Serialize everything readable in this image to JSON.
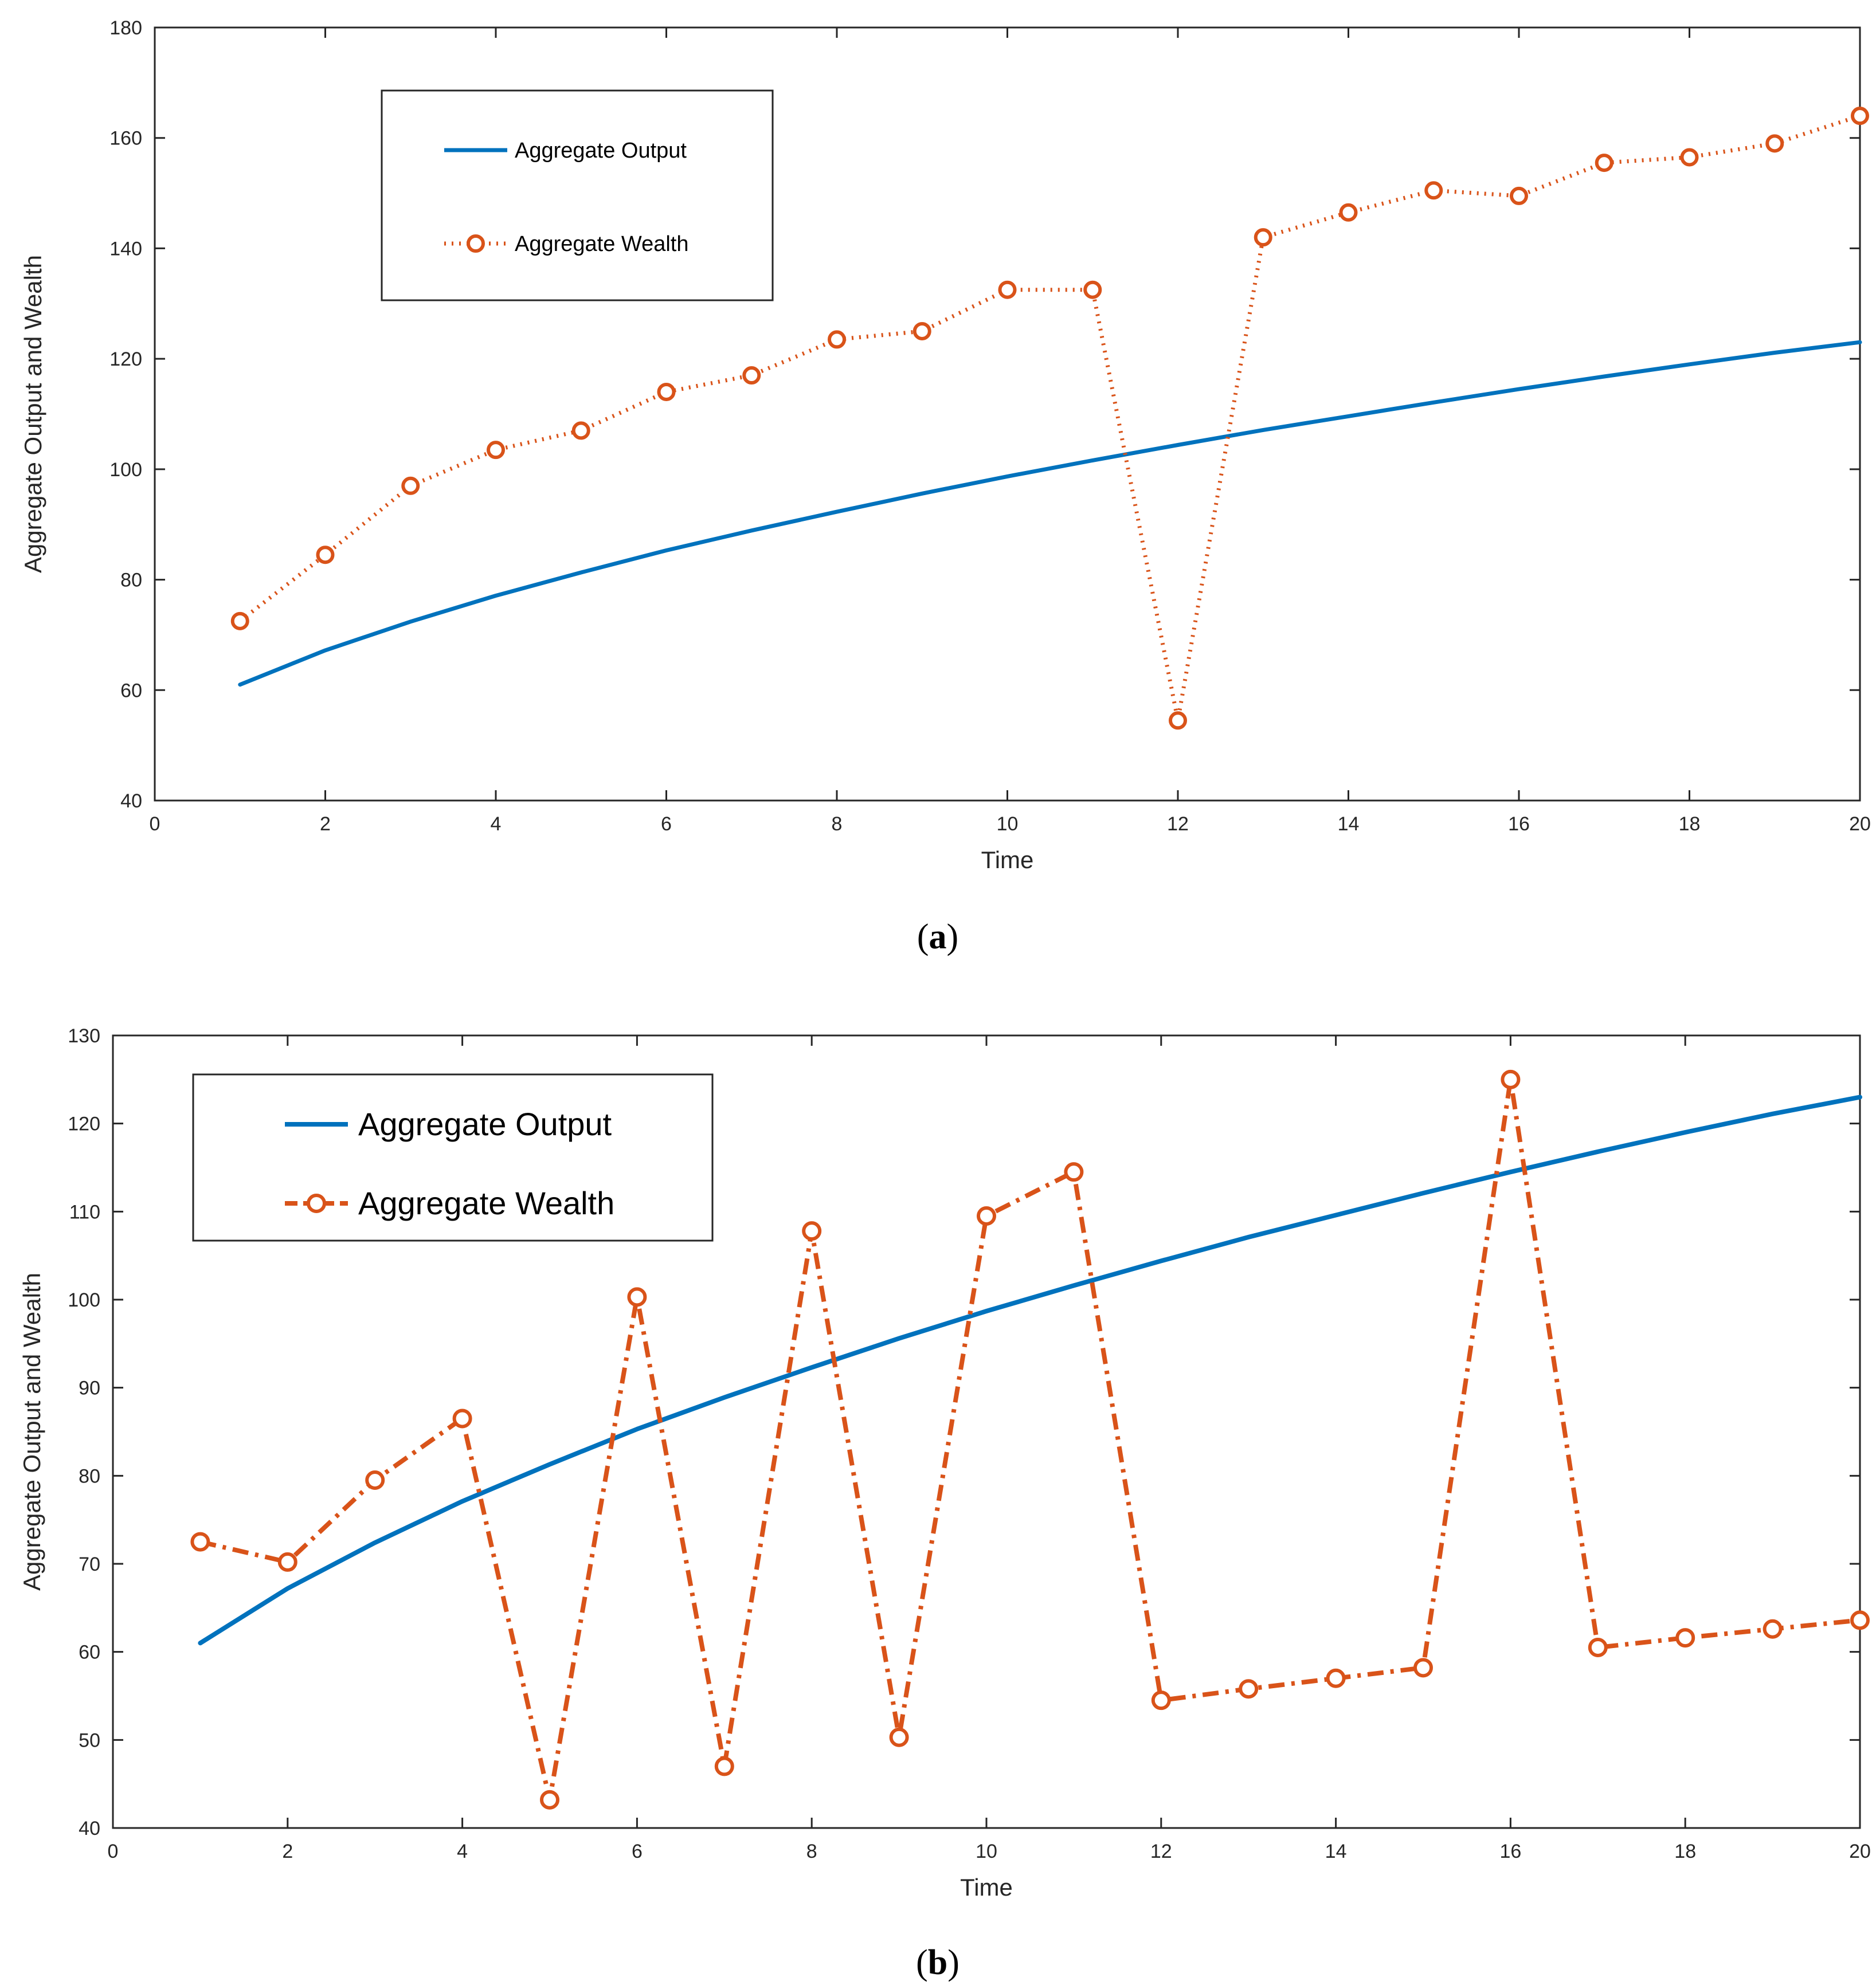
{
  "colors": {
    "output": "#0072BD",
    "wealth": "#D95319",
    "axis": "#262626",
    "legend_border": "#262626"
  },
  "chart_data": [
    {
      "type": "line",
      "panel": "a",
      "caption": {
        "open": "(",
        "letter": "a",
        "close": ")"
      },
      "xlabel": "Time",
      "ylabel": "Aggregate Output and Wealth",
      "xlim": [
        0,
        20
      ],
      "ylim": [
        40,
        180
      ],
      "xticks": [
        "0",
        "2",
        "4",
        "6",
        "8",
        "10",
        "12",
        "14",
        "16",
        "18",
        "20"
      ],
      "yticks": [
        "40",
        "60",
        "80",
        "100",
        "120",
        "140",
        "160",
        "180"
      ],
      "legend_position": "top-left",
      "series": [
        {
          "name": "Aggregate Output",
          "style": "solid",
          "x": [
            1,
            2,
            3,
            4,
            5,
            6,
            7,
            8,
            9,
            10,
            11,
            12,
            13,
            14,
            15,
            16,
            17,
            18,
            19,
            20
          ],
          "values": [
            61,
            67.2,
            72.4,
            77.1,
            81.3,
            85.3,
            88.9,
            92.3,
            95.6,
            98.7,
            101.6,
            104.4,
            107.1,
            109.6,
            112.1,
            114.5,
            116.8,
            119,
            121.1,
            123
          ]
        },
        {
          "name": "Aggregate Wealth",
          "style": "dotted",
          "marker": "circle",
          "x": [
            1,
            2,
            3,
            4,
            5,
            6,
            7,
            8,
            9,
            10,
            11,
            12,
            13,
            14,
            15,
            16,
            17,
            18,
            19,
            20
          ],
          "values": [
            72.5,
            84.5,
            97,
            103.5,
            107,
            114,
            117,
            123.5,
            125,
            132.5,
            132.5,
            54.5,
            142,
            146.5,
            150.5,
            149.5,
            155.5,
            156.5,
            159,
            164
          ]
        }
      ]
    },
    {
      "type": "line",
      "panel": "b",
      "caption": {
        "open": "(",
        "letter": "b",
        "close": ")"
      },
      "xlabel": "Time",
      "ylabel": "Aggregate Output and Wealth",
      "xlim": [
        0,
        20
      ],
      "ylim": [
        40,
        130
      ],
      "xticks": [
        "0",
        "2",
        "4",
        "6",
        "8",
        "10",
        "12",
        "14",
        "16",
        "18",
        "20"
      ],
      "yticks": [
        "40",
        "50",
        "60",
        "70",
        "80",
        "90",
        "100",
        "110",
        "120",
        "130"
      ],
      "legend_position": "top-left",
      "series": [
        {
          "name": "Aggregate Output",
          "style": "solid",
          "x": [
            1,
            2,
            3,
            4,
            5,
            6,
            7,
            8,
            9,
            10,
            11,
            12,
            13,
            14,
            15,
            16,
            17,
            18,
            19,
            20
          ],
          "values": [
            61,
            67.2,
            72.4,
            77.1,
            81.3,
            85.3,
            88.9,
            92.3,
            95.6,
            98.7,
            101.6,
            104.4,
            107.1,
            109.6,
            112.1,
            114.5,
            116.8,
            119,
            121.1,
            123
          ]
        },
        {
          "name": "Aggregate Wealth",
          "style": "dashed",
          "marker": "circle",
          "x": [
            1,
            2,
            3,
            4,
            5,
            6,
            7,
            8,
            9,
            10,
            11,
            12,
            13,
            14,
            15,
            16,
            17,
            18,
            19,
            20
          ],
          "values": [
            72.5,
            70.2,
            79.5,
            86.5,
            43.2,
            100.3,
            47,
            107.8,
            50.3,
            109.5,
            114.5,
            54.5,
            55.8,
            57,
            58.2,
            125,
            60.5,
            61.6,
            62.6,
            63.6
          ]
        }
      ]
    }
  ]
}
